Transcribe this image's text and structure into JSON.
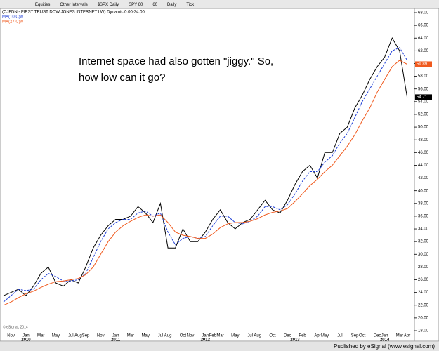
{
  "toolbar": {
    "items": [
      "Equities",
      "Other Intervals",
      "$SPX Daily",
      "SPY 60",
      "60",
      "Daily",
      "Tick"
    ]
  },
  "chart_data": {
    "type": "line",
    "title": "(CJFDN - FIRST TRUST DOW JONES INTERNET LW) Dynamic,0:00-24:00",
    "annotation": [
      "Internet space had also gotten \"jiggy.\" So,",
      "how low can it go?"
    ],
    "categories": [
      null,
      "Nov",
      null,
      "Jan",
      null,
      "Mar",
      null,
      "May",
      null,
      "Jul",
      "Aug",
      "Sep",
      null,
      "Nov",
      null,
      "Jan",
      null,
      "Mar",
      null,
      "May",
      null,
      "Jul",
      "Aug",
      null,
      "Oct",
      "Nov",
      null,
      "Jan",
      "Feb",
      "Mar",
      null,
      "May",
      null,
      "Jul",
      "Aug",
      null,
      "Oct",
      null,
      "Dec",
      null,
      "Feb",
      null,
      "Apr",
      "May",
      null,
      "Jul",
      null,
      "Sep",
      "Oct",
      null,
      "Dec",
      "Jan",
      null,
      "Mar",
      "Apr"
    ],
    "years": [
      null,
      null,
      null,
      "2010",
      null,
      null,
      null,
      null,
      null,
      null,
      null,
      null,
      null,
      null,
      null,
      "2011",
      null,
      null,
      null,
      null,
      null,
      null,
      null,
      null,
      null,
      null,
      null,
      "2012",
      null,
      null,
      null,
      null,
      null,
      null,
      null,
      null,
      null,
      null,
      null,
      "2013",
      null,
      null,
      null,
      null,
      null,
      null,
      null,
      null,
      null,
      null,
      null,
      "2014",
      null,
      null,
      null
    ],
    "series": [
      {
        "name": "(CJFDN - FIRST TRUST DOW JONES INTERNET LW)",
        "color": "#000000",
        "style": "solid",
        "values": [
          23.5,
          24,
          24.5,
          23.5,
          25,
          27,
          28,
          25.5,
          25,
          26,
          25.5,
          28,
          31,
          33,
          34.5,
          35.5,
          35.5,
          36,
          37.5,
          36.5,
          35,
          38,
          31,
          31,
          34,
          32,
          32,
          33.5,
          35.5,
          37,
          35,
          34,
          35,
          35.5,
          37,
          38.5,
          37,
          36.5,
          38.5,
          41,
          43,
          44,
          42,
          46,
          46,
          49,
          50,
          53,
          55,
          57.5,
          59.5,
          61,
          64,
          62,
          54.71
        ]
      },
      {
        "name": "MA(10,C)w",
        "color": "#1f3fd6",
        "style": "dashed",
        "values": [
          22.5,
          23.5,
          24.5,
          24.3,
          24.5,
          26,
          27,
          26.5,
          25.8,
          25.8,
          26,
          27,
          29.5,
          32,
          34,
          35,
          35.5,
          35.5,
          36.5,
          36.8,
          36,
          36.5,
          33.5,
          31.5,
          32.5,
          32.8,
          32.5,
          32.8,
          34.5,
          36,
          36,
          35,
          34.8,
          35.2,
          36,
          37.5,
          37.5,
          37,
          37.8,
          39.5,
          41.5,
          43,
          43,
          44.5,
          45.5,
          47.5,
          49,
          51.5,
          54,
          56,
          58,
          60,
          62,
          62.5,
          60.5
        ]
      },
      {
        "name": "MA(27,C)w",
        "color": "#f05a1e",
        "style": "solid",
        "values": [
          22,
          22.5,
          23.2,
          23.8,
          24.2,
          24.8,
          25.3,
          25.7,
          25.8,
          26,
          26.2,
          26.8,
          28,
          30,
          32,
          33.5,
          34.5,
          35.2,
          35.8,
          36.2,
          36,
          36.2,
          35,
          33.5,
          33,
          32.8,
          32.5,
          32.5,
          33.2,
          34.2,
          34.8,
          35,
          35,
          35.2,
          35.6,
          36.2,
          36.6,
          36.8,
          37.2,
          38.3,
          39.5,
          40.8,
          41.8,
          43,
          44,
          45.5,
          47,
          48.8,
          51,
          53,
          55.5,
          57.5,
          59.5,
          60.5,
          59.89
        ]
      }
    ],
    "last_value_labels": [
      "54.71",
      null,
      "59.89"
    ],
    "ylim": [
      18,
      68
    ],
    "yticks": [
      {
        "value": 18,
        "label": "18.00"
      },
      {
        "value": 20,
        "label": "20.00"
      },
      {
        "value": 22,
        "label": "22.00"
      },
      {
        "value": 24,
        "label": "24.00"
      },
      {
        "value": 26,
        "label": "26.00"
      },
      {
        "value": 28,
        "label": "28.00"
      },
      {
        "value": 30,
        "label": "30.00"
      },
      {
        "value": 32,
        "label": "32.00"
      },
      {
        "value": 34,
        "label": "34.00"
      },
      {
        "value": 36,
        "label": "36.00"
      },
      {
        "value": 38,
        "label": "38.00"
      },
      {
        "value": 40,
        "label": "40.00"
      },
      {
        "value": 42,
        "label": "42.00"
      },
      {
        "value": 44,
        "label": "44.00"
      },
      {
        "value": 46,
        "label": "46.00"
      },
      {
        "value": 48,
        "label": "48.00"
      },
      {
        "value": 50,
        "label": "50.00"
      },
      {
        "value": 52,
        "label": "52.00"
      },
      {
        "value": 54,
        "label": "54.00"
      },
      {
        "value": 56,
        "label": "56.00"
      },
      {
        "value": 58,
        "label": "58.00"
      },
      {
        "value": 60,
        "label": "60.00"
      },
      {
        "value": 62,
        "label": "62.00"
      },
      {
        "value": 64,
        "label": "64.00"
      },
      {
        "value": 66,
        "label": "66.00"
      },
      {
        "value": 68,
        "label": "68.00"
      }
    ],
    "grid": false,
    "copyright": "© eSignal, 2014"
  },
  "footer": "Published by eSignal (www.esignal.com)"
}
